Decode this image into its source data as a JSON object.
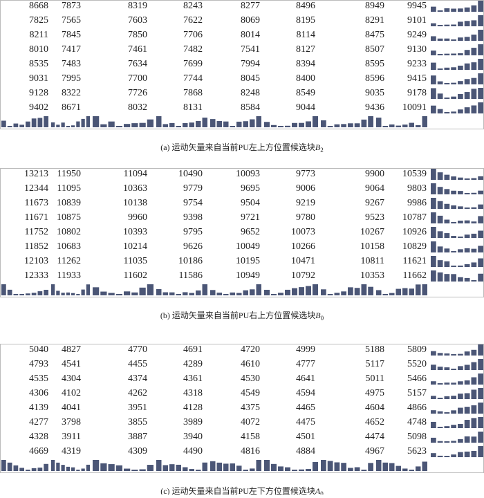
{
  "panels": [
    {
      "caption": "(a) 运动矢量来自当前PU左上方位置候选块",
      "symbol": "B",
      "subscript": "2",
      "rows": [
        [
          8668,
          7873,
          8319,
          8243,
          8277,
          8496,
          8949,
          9945
        ],
        [
          7825,
          7565,
          7603,
          7622,
          8069,
          8195,
          8291,
          9101
        ],
        [
          8211,
          7845,
          7850,
          7706,
          8014,
          8114,
          8475,
          9249
        ],
        [
          8010,
          7417,
          7461,
          7482,
          7541,
          8127,
          8507,
          9130
        ],
        [
          8535,
          7483,
          7634,
          7699,
          7994,
          8394,
          8595,
          9233
        ],
        [
          9031,
          7995,
          7700,
          7744,
          8045,
          8400,
          8596,
          9415
        ],
        [
          9128,
          8322,
          7726,
          7868,
          8248,
          8549,
          9035,
          9178
        ],
        [
          9402,
          8671,
          8032,
          8131,
          8584,
          9044,
          9436,
          10091
        ]
      ]
    },
    {
      "caption": "(b) 运动矢量来自当前PU右上方位置候选块",
      "symbol": "B",
      "subscript": "0",
      "rows": [
        [
          13213,
          11950,
          11094,
          10490,
          10093,
          9773,
          9900,
          10539
        ],
        [
          12344,
          11095,
          10363,
          9779,
          9695,
          9006,
          9064,
          9803
        ],
        [
          11673,
          10839,
          10138,
          9754,
          9504,
          9219,
          9267,
          9986
        ],
        [
          11671,
          10875,
          9960,
          9398,
          9721,
          9780,
          9523,
          10787
        ],
        [
          11752,
          10802,
          10393,
          9795,
          9652,
          10073,
          10267,
          10926
        ],
        [
          11852,
          10683,
          10214,
          9626,
          10049,
          10266,
          10158,
          10829
        ],
        [
          12103,
          11262,
          11035,
          10186,
          10195,
          10471,
          10811,
          11621
        ],
        [
          12333,
          11933,
          11602,
          11586,
          10949,
          10792,
          10353,
          11662
        ]
      ]
    },
    {
      "caption": "(c) 运动矢量来自当前PU左下方位置候选块",
      "symbol": "A",
      "subscript": "0",
      "rows": [
        [
          5040,
          4827,
          4770,
          4691,
          4720,
          4999,
          5188,
          5809
        ],
        [
          4793,
          4541,
          4455,
          4289,
          4610,
          4777,
          5117,
          5520
        ],
        [
          4535,
          4304,
          4374,
          4361,
          4530,
          4641,
          5011,
          5466
        ],
        [
          4306,
          4102,
          4262,
          4318,
          4549,
          4594,
          4975,
          5157
        ],
        [
          4139,
          4041,
          3951,
          4128,
          4375,
          4465,
          4604,
          4866
        ],
        [
          4277,
          3798,
          3855,
          3989,
          4072,
          4475,
          4652,
          4748
        ],
        [
          4328,
          3911,
          3887,
          3940,
          4158,
          4501,
          4474,
          5098
        ],
        [
          4669,
          4319,
          4309,
          4490,
          4816,
          4884,
          4967,
          5623
        ]
      ]
    }
  ]
}
